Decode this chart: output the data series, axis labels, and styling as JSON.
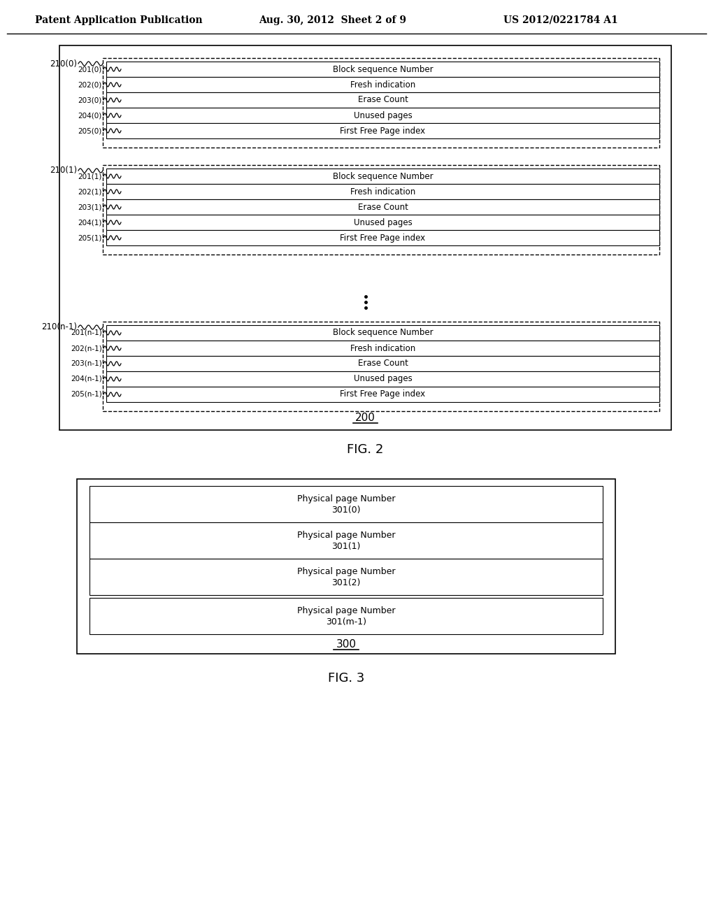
{
  "bg_color": "#ffffff",
  "header_text": "Patent Application Publication    Aug. 30, 2012  Sheet 2 of 9         US 2012/0221784 A1",
  "fig2_label": "FIG. 2",
  "fig3_label": "FIG. 3",
  "fig2_ref": "200",
  "fig3_ref": "300",
  "block_groups": [
    {
      "outer_label": "210(0)",
      "rows": [
        {
          "label": "201(0)",
          "text": "Block sequence Number"
        },
        {
          "label": "202(0)",
          "text": "Fresh indication"
        },
        {
          "label": "203(0)",
          "text": "Erase Count"
        },
        {
          "label": "204(0)",
          "text": "Unused pages"
        },
        {
          "label": "205(0)",
          "text": "First Free Page index"
        }
      ]
    },
    {
      "outer_label": "210(1)",
      "rows": [
        {
          "label": "201(1)",
          "text": "Block sequence Number"
        },
        {
          "label": "202(1)",
          "text": "Fresh indication"
        },
        {
          "label": "203(1)",
          "text": "Erase Count"
        },
        {
          "label": "204(1)",
          "text": "Unused pages"
        },
        {
          "label": "205(1)",
          "text": "First Free Page index"
        }
      ]
    },
    {
      "outer_label": "210(n-1)",
      "rows": [
        {
          "label": "201(n-1)",
          "text": "Block sequence Number"
        },
        {
          "label": "202(n-1)",
          "text": "Fresh indication"
        },
        {
          "label": "203(n-1)",
          "text": "Erase Count"
        },
        {
          "label": "204(n-1)",
          "text": "Unused pages"
        },
        {
          "label": "205(n-1)",
          "text": "First Free Page index"
        }
      ]
    }
  ],
  "fig3_rows": [
    {
      "text": "Physical page Number\n301(0)"
    },
    {
      "text": "Physical page Number\n301(1)"
    },
    {
      "text": "Physical page Number\n301(2)"
    },
    {
      "text": "Physical page Number\n301(m-1)"
    }
  ]
}
